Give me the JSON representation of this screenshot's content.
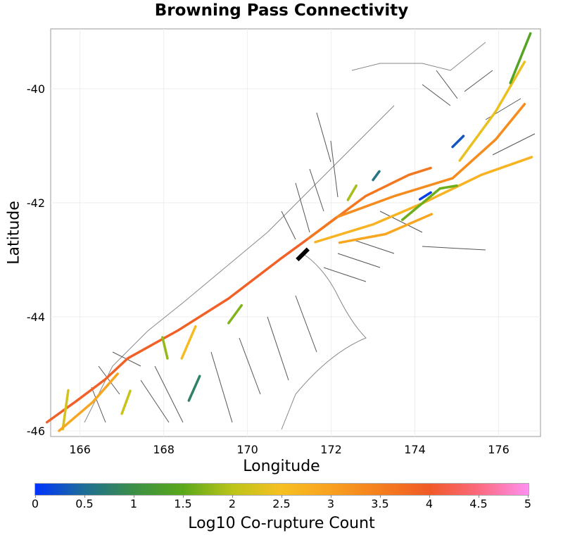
{
  "title": "Browning Pass Connectivity",
  "xlabel": "Longitude",
  "ylabel": "Latitude",
  "colorbar_label": "Log10 Co-rupture Count",
  "colorbar_ticks": [
    "0",
    "0.5",
    "1",
    "1.5",
    "2",
    "2.5",
    "3",
    "3.5",
    "4",
    "4.5",
    "5"
  ],
  "colorbar_range": [
    0,
    5
  ],
  "colorbar_stops": [
    "#0033ff",
    "#1e6e96",
    "#3c8f46",
    "#5aa81a",
    "#bcc41a",
    "#f7c021",
    "#f8a020",
    "#f57e1d",
    "#f05a28",
    "#fb6a80",
    "#ff90f0"
  ],
  "x_ticks": [
    166,
    168,
    170,
    172,
    174,
    176
  ],
  "y_ticks": [
    -40,
    -42,
    -44,
    -46
  ],
  "x_range": [
    165.3,
    177.0
  ],
  "y_range": [
    -46.1,
    -38.95
  ],
  "source_fault_color": "#000000",
  "source_fault": [
    [
      171.19,
      -43.0
    ],
    [
      171.45,
      -42.81
    ]
  ],
  "ruptures": [
    {
      "value": 3.9,
      "path": [
        [
          165.21,
          -45.85
        ],
        [
          165.93,
          -45.47
        ],
        [
          166.6,
          -45.1
        ],
        [
          167.14,
          -44.73
        ],
        [
          168.34,
          -44.24
        ],
        [
          169.55,
          -43.68
        ],
        [
          170.76,
          -43.0
        ],
        [
          171.45,
          -42.63
        ],
        [
          172.14,
          -42.25
        ]
      ]
    },
    {
      "value": 3.6,
      "path": [
        [
          171.45,
          -42.63
        ],
        [
          172.83,
          -41.88
        ],
        [
          173.86,
          -41.51
        ],
        [
          174.38,
          -41.39
        ]
      ]
    },
    {
      "value": 2.7,
      "path": [
        [
          171.62,
          -42.69
        ],
        [
          173.0,
          -42.38
        ],
        [
          174.21,
          -42.0
        ],
        [
          175.59,
          -41.51
        ],
        [
          176.79,
          -41.2
        ]
      ]
    },
    {
      "value": 3.3,
      "path": [
        [
          172.14,
          -42.25
        ],
        [
          173.52,
          -41.88
        ],
        [
          174.9,
          -41.57
        ],
        [
          175.93,
          -40.89
        ],
        [
          176.62,
          -40.27
        ]
      ]
    },
    {
      "value": 2.4,
      "path": [
        [
          175.07,
          -41.26
        ],
        [
          175.93,
          -40.4
        ],
        [
          176.62,
          -39.53
        ]
      ]
    },
    {
      "value": 1.4,
      "path": [
        [
          176.28,
          -39.9
        ],
        [
          176.76,
          -39.03
        ]
      ]
    },
    {
      "value": 0.1,
      "path": [
        [
          174.12,
          -41.94
        ],
        [
          174.38,
          -41.82
        ]
      ]
    },
    {
      "value": 0.3,
      "path": [
        [
          174.9,
          -41.02
        ],
        [
          175.16,
          -40.83
        ]
      ]
    },
    {
      "value": 2.9,
      "path": [
        [
          172.2,
          -42.7
        ],
        [
          173.3,
          -42.55
        ],
        [
          174.4,
          -42.2
        ]
      ]
    },
    {
      "value": 1.6,
      "path": [
        [
          173.7,
          -42.3
        ],
        [
          174.6,
          -41.75
        ],
        [
          175.0,
          -41.7
        ]
      ]
    },
    {
      "value": 2.2,
      "path": [
        [
          165.59,
          -45.97
        ],
        [
          165.72,
          -45.29
        ]
      ]
    },
    {
      "value": 2.9,
      "path": [
        [
          165.5,
          -46.0
        ],
        [
          166.3,
          -45.5
        ],
        [
          166.9,
          -45.0
        ]
      ]
    },
    {
      "value": 1.7,
      "path": [
        [
          169.55,
          -44.11
        ],
        [
          169.86,
          -43.8
        ]
      ]
    },
    {
      "value": 2.6,
      "path": [
        [
          168.43,
          -44.73
        ],
        [
          168.76,
          -44.17
        ]
      ]
    },
    {
      "value": 0.8,
      "path": [
        [
          168.6,
          -45.47
        ],
        [
          168.86,
          -45.04
        ]
      ]
    },
    {
      "value": 1.8,
      "path": [
        [
          167.97,
          -44.36
        ],
        [
          168.09,
          -44.73
        ]
      ]
    },
    {
      "value": 2.1,
      "path": [
        [
          167.0,
          -45.7
        ],
        [
          167.2,
          -45.3
        ]
      ]
    },
    {
      "value": 1.9,
      "path": [
        [
          172.4,
          -41.95
        ],
        [
          172.6,
          -41.7
        ]
      ]
    },
    {
      "value": 0.6,
      "path": [
        [
          173.0,
          -41.6
        ],
        [
          173.15,
          -41.45
        ]
      ]
    }
  ]
}
